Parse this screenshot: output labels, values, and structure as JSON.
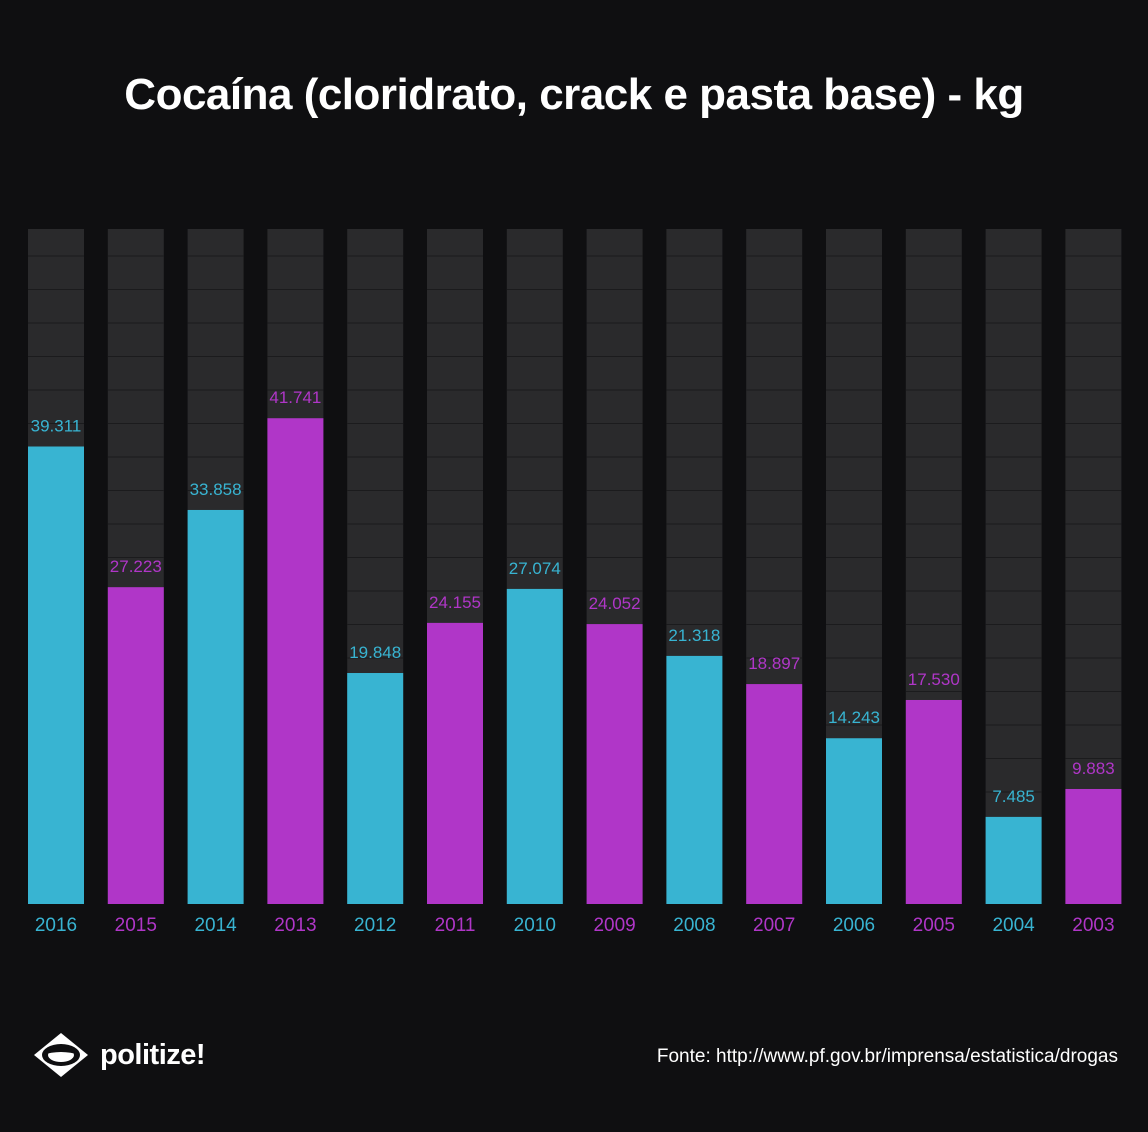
{
  "brand": {
    "name": "politize!",
    "icon": "eye-logo-icon"
  },
  "source": "Fonte: http://www.pf.gov.br/imprensa/estatistica/drogas",
  "colors": {
    "cyan": "#38b4d2",
    "purple": "#b036c8",
    "track": "#2a2a2c",
    "background": "#0f0f11"
  },
  "chart_data": {
    "type": "bar",
    "title": "Cocaína (cloridrato, crack e pasta base) - kg",
    "xlabel": "",
    "ylabel": "",
    "ylim": [
      0,
      58000
    ],
    "grid": false,
    "legend": "none",
    "categories": [
      "2016",
      "2015",
      "2014",
      "2013",
      "2012",
      "2011",
      "2010",
      "2009",
      "2008",
      "2007",
      "2006",
      "2005",
      "2004",
      "2003"
    ],
    "values": [
      39311,
      27223,
      33858,
      41741,
      19848,
      24155,
      27074,
      24052,
      21318,
      18897,
      14243,
      17530,
      7485,
      9883
    ],
    "labels": [
      "39.311",
      "27.223",
      "33.858",
      "41.741",
      "19.848",
      "24.155",
      "27.074",
      "24.052",
      "21.318",
      "18.897",
      "14.243",
      "17.530",
      "7.485",
      "9.883"
    ]
  }
}
